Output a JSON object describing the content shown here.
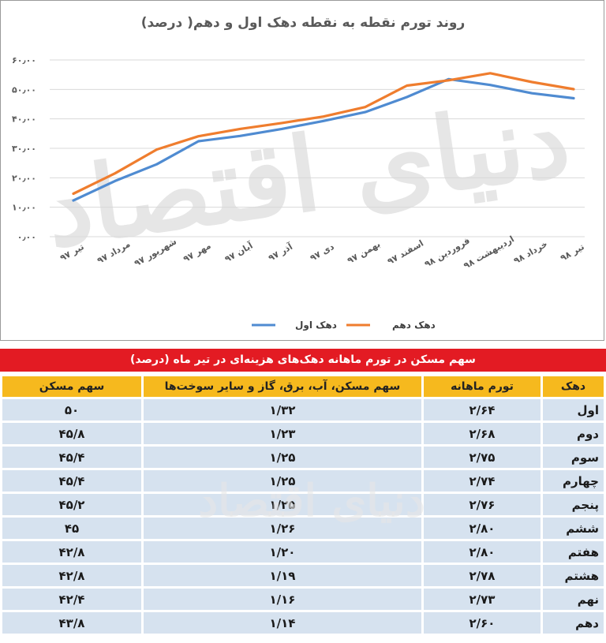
{
  "chart": {
    "title": "روند تورم نقطه به نقطه دهک اول و دهم( درصد)",
    "watermark": "دنیای اقتصاد",
    "legend": [
      "دهک اول",
      "دهک دهم"
    ]
  },
  "chart_data": {
    "type": "line",
    "title": "روند تورم نقطه به نقطه دهک اول و دهم( درصد)",
    "categories": [
      "تیر ۹۷",
      "مرداد ۹۷",
      "شهریور ۹۷",
      "مهر ۹۷",
      "آبان ۹۷",
      "آذر ۹۷",
      "دی ۹۷",
      "بهمن ۹۷",
      "اسفند ۹۷",
      "فروردین ۹۸",
      "اردیبهشت ۹۸",
      "خرداد ۹۸",
      "تیر ۹۸"
    ],
    "ylim": [
      0,
      60
    ],
    "yticks": [
      "۰٫۰۰",
      "۱۰٫۰۰",
      "۲۰٫۰۰",
      "۳۰٫۰۰",
      "۴۰٫۰۰",
      "۵۰٫۰۰",
      "۶۰٫۰۰"
    ],
    "ytick_values": [
      0,
      10,
      20,
      30,
      40,
      50,
      60
    ],
    "grid": true,
    "legend_position": "bottom",
    "series": [
      {
        "name": "دهک اول",
        "color": "#4f8bd1",
        "values": [
          12.3,
          18.9,
          24.6,
          32.4,
          34.2,
          36.6,
          39.3,
          42.3,
          47.4,
          53.5,
          51.5,
          48.7,
          47.0
        ]
      },
      {
        "name": "دهک دهم",
        "color": "#ef7d2e",
        "values": [
          14.6,
          21.5,
          29.6,
          34.1,
          36.6,
          38.6,
          40.8,
          44.0,
          51.3,
          53.1,
          55.5,
          52.5,
          50.1
        ]
      }
    ]
  },
  "table": {
    "title": "سهم مسکن در تورم ماهانه دهک‌های هزینه‌ای در تیر ماه (درصد)",
    "watermark": "دنیای اقتصاد",
    "headers": [
      "دهک",
      "تورم ماهانه",
      "سهم مسکن، آب، برق، گاز و سایر سوخت‌ها",
      "سهم مسکن"
    ],
    "rows": [
      {
        "group": "اول",
        "inflation": "۲/۶۴",
        "fuel": "۱/۳۲",
        "housing": "۵۰"
      },
      {
        "group": "دوم",
        "inflation": "۲/۶۸",
        "fuel": "۱/۲۳",
        "housing": "۴۵/۸"
      },
      {
        "group": "سوم",
        "inflation": "۲/۷۵",
        "fuel": "۱/۲۵",
        "housing": "۴۵/۴"
      },
      {
        "group": "چهارم",
        "inflation": "۲/۷۴",
        "fuel": "۱/۲۵",
        "housing": "۴۵/۴"
      },
      {
        "group": "پنجم",
        "inflation": "۲/۷۶",
        "fuel": "۱/۲۵",
        "housing": "۴۵/۲"
      },
      {
        "group": "ششم",
        "inflation": "۲/۸۰",
        "fuel": "۱/۲۶",
        "housing": "۴۵"
      },
      {
        "group": "هفتم",
        "inflation": "۲/۸۰",
        "fuel": "۱/۲۰",
        "housing": "۴۲/۸"
      },
      {
        "group": "هشتم",
        "inflation": "۲/۷۸",
        "fuel": "۱/۱۹",
        "housing": "۴۲/۸"
      },
      {
        "group": "نهم",
        "inflation": "۲/۷۳",
        "fuel": "۱/۱۶",
        "housing": "۴۲/۴"
      },
      {
        "group": "دهم",
        "inflation": "۲/۶۰",
        "fuel": "۱/۱۴",
        "housing": "۴۳/۸"
      }
    ]
  }
}
